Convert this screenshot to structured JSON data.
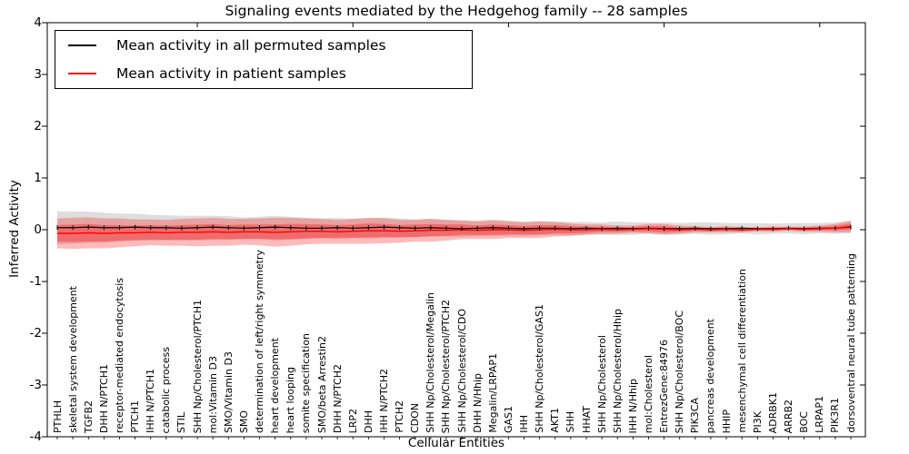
{
  "title": "Signaling events mediated by the Hedgehog family -- 28 samples",
  "axes": {
    "xlabel": "Cellular Entities",
    "ylabel": "Inferred Activity",
    "yticks": [
      "4",
      "3",
      "2",
      "1",
      "0",
      "-1",
      "-2",
      "-3",
      "-4"
    ]
  },
  "legend": {
    "items": [
      {
        "label": "Mean activity in all permuted samples",
        "color": "#000000"
      },
      {
        "label": "Mean activity in patient samples",
        "color": "#ff0000"
      }
    ]
  },
  "colors": {
    "permuted_line": "#000000",
    "patient_line": "#ff0000",
    "permuted_band": "rgba(0,0,0,0.13)",
    "patient_band_outer": "rgba(255,0,0,0.27)",
    "patient_band_inner": "rgba(255,0,0,0.33)",
    "spine": "#000000",
    "background": "#ffffff"
  },
  "chart_data": {
    "type": "line",
    "title": "Signaling events mediated by the Hedgehog family -- 28 samples",
    "xlabel": "Cellular Entities",
    "ylabel": "Inferred Activity",
    "ylim": [
      -4,
      4
    ],
    "yticks": [
      4,
      3,
      2,
      1,
      0,
      -1,
      -2,
      -3,
      -4
    ],
    "grid": false,
    "legend_position": "upper left",
    "categories": [
      "PTHLH",
      "skeletal system development",
      "TGFB2",
      "DHH N/PTCH1",
      "receptor-mediated endocytosis",
      "PTCH1",
      "IHH N/PTCH1",
      "catabolic process",
      "STIL",
      "SHH Np/Cholesterol/PTCH1",
      "mol:Vitamin D3",
      "SMO/Vitamin D3",
      "SMO",
      "determination of left/right symmetry",
      "heart development",
      "heart looping",
      "somite specification",
      "SMO/beta Arrestin2",
      "DHH N/PTCH2",
      "LRP2",
      "DHH",
      "IHH N/PTCH2",
      "PTCH2",
      "CDON",
      "SHH Np/Cholesterol/Megalin",
      "SHH Np/Cholesterol/PTCH2",
      "SHH Np/Cholesterol/CDO",
      "DHH N/Hhip",
      "Megalin/LRPAP1",
      "GAS1",
      "IHH",
      "SHH Np/Cholesterol/GAS1",
      "AKT1",
      "SHH",
      "HHAT",
      "SHH Np/Cholesterol",
      "SHH Np/Cholesterol/Hhip",
      "IHH N/Hhip",
      "mol:Cholesterol",
      "EntrezGene:84976",
      "SHH Np/Cholesterol/BOC",
      "PIK3CA",
      "pancreas development",
      "HHIP",
      "mesenchymal cell differentiation",
      "PI3K",
      "ADRBK1",
      "ARRB2",
      "BOC",
      "LRPAP1",
      "PIK3R1",
      "dorsoventral neural tube patterning"
    ],
    "series": [
      {
        "name": "Mean activity in all permuted samples",
        "color": "#000000",
        "values": [
          0.04,
          0.04,
          0.05,
          0.04,
          0.04,
          0.05,
          0.04,
          0.04,
          0.03,
          0.04,
          0.05,
          0.04,
          0.03,
          0.04,
          0.05,
          0.04,
          0.03,
          0.03,
          0.04,
          0.03,
          0.04,
          0.05,
          0.04,
          0.03,
          0.04,
          0.03,
          0.02,
          0.03,
          0.04,
          0.03,
          0.02,
          0.03,
          0.03,
          0.02,
          0.03,
          0.02,
          0.03,
          0.02,
          0.03,
          0.02,
          0.02,
          0.03,
          0.02,
          0.02,
          0.03,
          0.02,
          0.02,
          0.03,
          0.02,
          0.03,
          0.03,
          0.05
        ]
      },
      {
        "name": "Mean activity in patient samples",
        "color": "#ff0000",
        "values": [
          -0.07,
          -0.07,
          -0.06,
          -0.07,
          -0.06,
          -0.06,
          -0.05,
          -0.06,
          -0.05,
          -0.05,
          -0.04,
          -0.05,
          -0.04,
          -0.04,
          -0.05,
          -0.04,
          -0.03,
          -0.03,
          -0.04,
          -0.03,
          -0.02,
          -0.02,
          -0.03,
          -0.02,
          -0.01,
          -0.01,
          0.0,
          -0.01,
          0.0,
          0.0,
          -0.01,
          0.0,
          0.01,
          0.0,
          0.0,
          0.01,
          0.0,
          0.01,
          0.02,
          0.01,
          0.0,
          0.01,
          0.0,
          0.01,
          0.0,
          0.01,
          0.01,
          0.02,
          0.01,
          0.02,
          0.03,
          0.06
        ]
      }
    ],
    "bands": [
      {
        "name": "permuted-std-band",
        "center_series": 0,
        "fill": "rgba(0,0,0,0.13)",
        "halfwidth": [
          0.32,
          0.31,
          0.3,
          0.29,
          0.27,
          0.26,
          0.25,
          0.24,
          0.24,
          0.23,
          0.22,
          0.22,
          0.21,
          0.21,
          0.22,
          0.21,
          0.2,
          0.19,
          0.19,
          0.18,
          0.18,
          0.19,
          0.18,
          0.17,
          0.17,
          0.16,
          0.16,
          0.15,
          0.16,
          0.15,
          0.14,
          0.14,
          0.13,
          0.13,
          0.12,
          0.12,
          0.13,
          0.12,
          0.11,
          0.12,
          0.11,
          0.11,
          0.12,
          0.11,
          0.1,
          0.11,
          0.1,
          0.1,
          0.11,
          0.1,
          0.11,
          0.12
        ]
      },
      {
        "name": "patient-std-band-outer",
        "center_series": 1,
        "fill": "rgba(255,0,0,0.27)",
        "halfwidth": [
          0.29,
          0.3,
          0.3,
          0.29,
          0.28,
          0.26,
          0.25,
          0.25,
          0.26,
          0.27,
          0.27,
          0.26,
          0.25,
          0.26,
          0.28,
          0.27,
          0.25,
          0.24,
          0.23,
          0.24,
          0.25,
          0.24,
          0.22,
          0.21,
          0.22,
          0.2,
          0.18,
          0.17,
          0.18,
          0.16,
          0.15,
          0.16,
          0.14,
          0.12,
          0.1,
          0.09,
          0.08,
          0.07,
          0.09,
          0.1,
          0.08,
          0.06,
          0.05,
          0.06,
          0.05,
          0.04,
          0.05,
          0.04,
          0.05,
          0.06,
          0.08,
          0.11
        ]
      },
      {
        "name": "patient-std-band-inner",
        "center_series": 1,
        "fill": "rgba(255,0,0,0.33)",
        "halfwidth": [
          0.16,
          0.17,
          0.17,
          0.16,
          0.15,
          0.14,
          0.14,
          0.14,
          0.14,
          0.15,
          0.15,
          0.14,
          0.14,
          0.14,
          0.15,
          0.15,
          0.14,
          0.13,
          0.13,
          0.13,
          0.14,
          0.13,
          0.12,
          0.12,
          0.12,
          0.11,
          0.1,
          0.09,
          0.1,
          0.09,
          0.08,
          0.09,
          0.08,
          0.07,
          0.06,
          0.05,
          0.04,
          0.04,
          0.05,
          0.06,
          0.04,
          0.03,
          0.03,
          0.03,
          0.03,
          0.02,
          0.03,
          0.02,
          0.03,
          0.03,
          0.04,
          0.06
        ]
      }
    ]
  }
}
